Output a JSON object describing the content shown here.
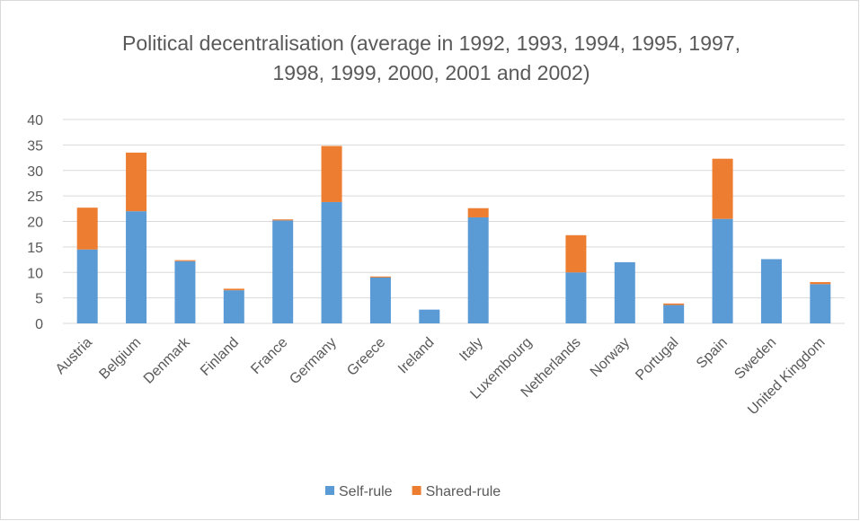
{
  "chart_data": {
    "type": "stacked_bar",
    "title": "Political decentralisation (average in 1992, 1993, 1994, 1995, 1997, 1998, 1999, 2000, 2001 and 2002)",
    "categories": [
      "Austria",
      "Belgium",
      "Denmark",
      "Finland",
      "France",
      "Germany",
      "Greece",
      "Ireland",
      "Italy",
      "Luxembourg",
      "Netherlands",
      "Norway",
      "Portugal",
      "Spain",
      "Sweden",
      "United Kingdom"
    ],
    "series": [
      {
        "name": "Self-rule",
        "color": "#5b9bd5",
        "values": [
          14.5,
          22,
          12.2,
          6.5,
          20.2,
          23.8,
          9,
          2.7,
          20.8,
          0,
          10,
          12,
          3.6,
          20.5,
          12.6,
          7.7
        ]
      },
      {
        "name": "Shared-rule",
        "color": "#ed7d31",
        "values": [
          8.2,
          11.5,
          0.2,
          0.3,
          0.2,
          11,
          0.2,
          0,
          1.8,
          0,
          7.3,
          0,
          0.3,
          11.8,
          0,
          0.4
        ]
      }
    ],
    "ylim": [
      0,
      40
    ],
    "yticks": [
      0,
      5,
      10,
      15,
      20,
      25,
      30,
      35,
      40
    ],
    "grid": true,
    "legend": "bottom"
  }
}
